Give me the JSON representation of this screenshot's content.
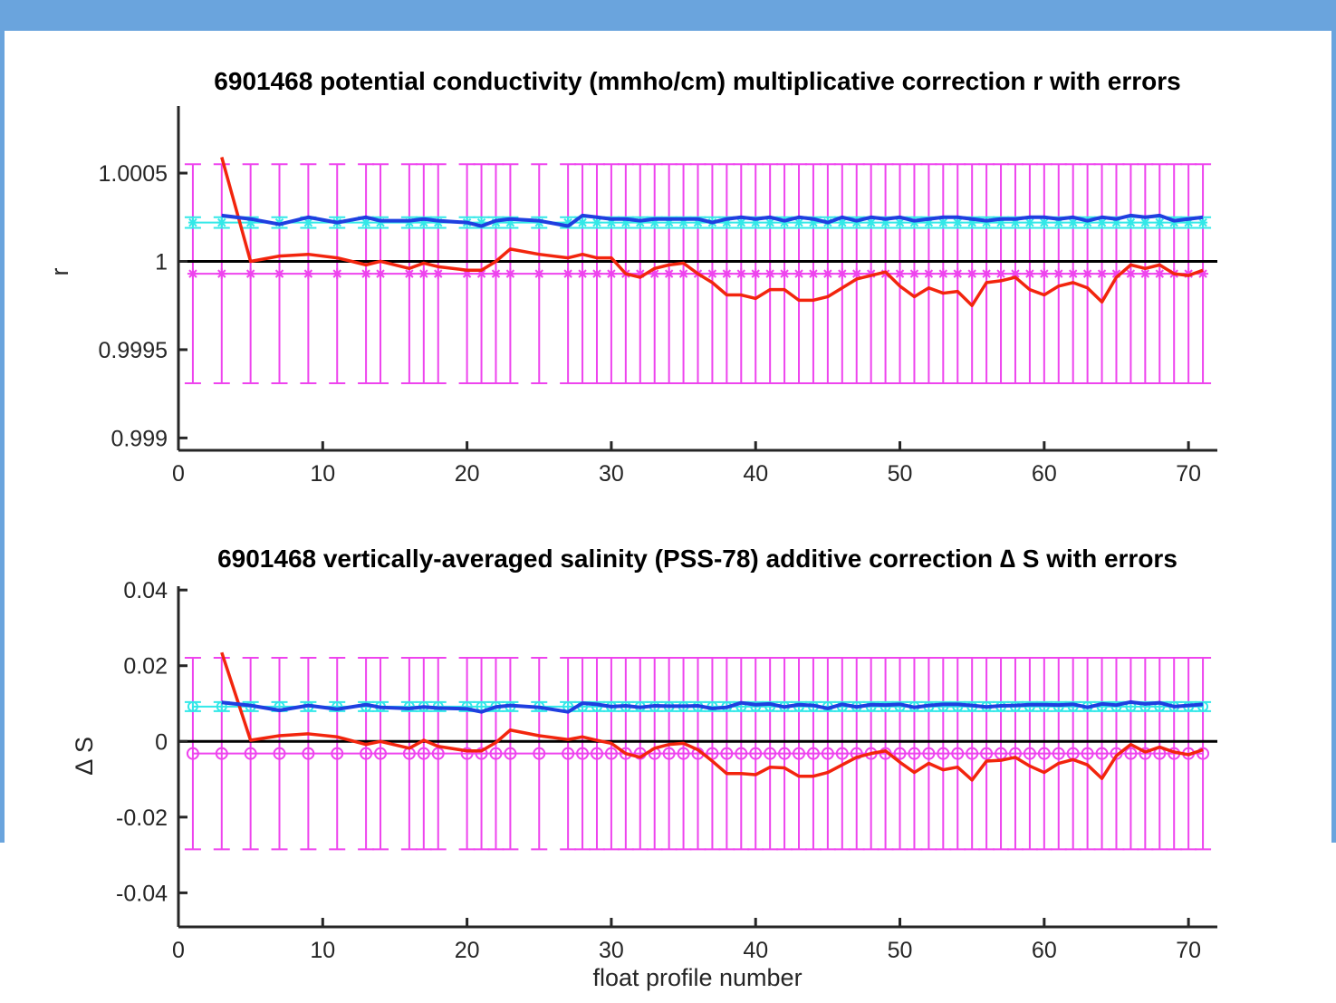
{
  "colors": {
    "frame_band": "#6aa4dd",
    "cyan_series": "#33e8e8",
    "magenta_series": "#ee44ee",
    "blue_series": "#1f3fe0",
    "red_series": "#f2250d",
    "zero_line": "#000000"
  },
  "chart_data": [
    {
      "type": "line",
      "title": "6901468 potential conductivity (mmho/cm) multiplicative correction r with errors",
      "xlabel": "",
      "ylabel": "r",
      "xlim": [
        0,
        72
      ],
      "ylim": [
        0.99893,
        1.00088
      ],
      "xticks": [
        0,
        10,
        20,
        30,
        40,
        50,
        60,
        70
      ],
      "xtick_labels": [
        "0",
        "10",
        "20",
        "30",
        "40",
        "50",
        "60",
        "70"
      ],
      "yticks": [
        0.999,
        0.9995,
        1,
        1.0005
      ],
      "ytick_labels": [
        "0.999",
        "0.9995",
        "1",
        "1.0005"
      ],
      "grid": false,
      "reference_line": 1,
      "x": [
        1,
        3,
        5,
        7,
        9,
        11,
        13,
        14,
        16,
        17,
        18,
        20,
        21,
        22,
        23,
        25,
        27,
        28,
        29,
        30,
        31,
        32,
        33,
        34,
        35,
        36,
        37,
        38,
        39,
        40,
        41,
        42,
        43,
        44,
        45,
        46,
        47,
        48,
        49,
        50,
        51,
        52,
        53,
        54,
        55,
        56,
        57,
        58,
        59,
        60,
        61,
        62,
        63,
        64,
        65,
        66,
        67,
        68,
        69,
        70,
        71
      ],
      "series": [
        {
          "role": "red",
          "x": [
            3,
            5,
            7,
            9,
            11,
            13,
            14,
            16,
            17,
            18,
            20,
            21,
            22,
            23,
            25,
            27,
            28,
            29,
            30,
            31,
            32,
            33,
            34,
            35,
            36,
            37,
            38,
            39,
            40,
            41,
            42,
            43,
            44,
            45,
            46,
            47,
            48,
            49,
            50,
            51,
            52,
            53,
            54,
            55,
            56,
            57,
            58,
            59,
            60,
            61,
            62,
            63,
            64,
            65,
            66,
            67,
            68,
            69,
            70,
            71
          ],
          "values": [
            1.00059,
            1.0,
            1.00003,
            1.00004,
            1.00002,
            0.99998,
            1.0,
            0.99996,
            0.99999,
            0.99997,
            0.99995,
            0.99995,
            1.0,
            1.00007,
            1.00004,
            1.00002,
            1.00004,
            1.00002,
            1.00002,
            0.99993,
            0.99991,
            0.99996,
            0.99998,
            0.99999,
            0.99993,
            0.99988,
            0.99981,
            0.99981,
            0.99979,
            0.99984,
            0.99984,
            0.99978,
            0.99978,
            0.9998,
            0.99985,
            0.9999,
            0.99992,
            0.99994,
            0.99986,
            0.9998,
            0.99985,
            0.99982,
            0.99983,
            0.99975,
            0.99988,
            0.99989,
            0.99991,
            0.99984,
            0.99981,
            0.99986,
            0.99988,
            0.99985,
            0.99977,
            0.99991,
            0.99998,
            0.99996,
            0.99998,
            0.99993,
            0.99992,
            0.99995
          ]
        },
        {
          "role": "blue",
          "x": [
            3,
            5,
            7,
            9,
            11,
            13,
            14,
            16,
            17,
            18,
            20,
            21,
            22,
            23,
            25,
            27,
            28,
            29,
            30,
            31,
            32,
            33,
            34,
            35,
            36,
            37,
            38,
            39,
            40,
            41,
            42,
            43,
            44,
            45,
            46,
            47,
            48,
            49,
            50,
            51,
            52,
            53,
            54,
            55,
            56,
            57,
            58,
            59,
            60,
            61,
            62,
            63,
            64,
            65,
            66,
            67,
            68,
            69,
            70,
            71
          ],
          "values": [
            1.00026,
            1.00024,
            1.00021,
            1.00025,
            1.00022,
            1.00025,
            1.00023,
            1.00023,
            1.00024,
            1.00023,
            1.00022,
            1.0002,
            1.00023,
            1.00024,
            1.00023,
            1.0002,
            1.00026,
            1.00025,
            1.00024,
            1.00024,
            1.00023,
            1.00024,
            1.00024,
            1.00024,
            1.00024,
            1.00022,
            1.00024,
            1.00025,
            1.00024,
            1.00025,
            1.00023,
            1.00025,
            1.00024,
            1.00022,
            1.00025,
            1.00023,
            1.00025,
            1.00024,
            1.00025,
            1.00023,
            1.00024,
            1.00025,
            1.00025,
            1.00024,
            1.00023,
            1.00024,
            1.00024,
            1.00025,
            1.00025,
            1.00024,
            1.00025,
            1.00023,
            1.00025,
            1.00024,
            1.00026,
            1.00025,
            1.00026,
            1.00023,
            1.00024,
            1.00025
          ]
        },
        {
          "role": "cyan",
          "x": [
            1,
            3,
            5,
            7,
            9,
            11,
            13,
            14,
            16,
            17,
            18,
            20,
            21,
            22,
            23,
            25,
            27,
            28,
            29,
            30,
            31,
            32,
            33,
            34,
            35,
            36,
            37,
            38,
            39,
            40,
            41,
            42,
            43,
            44,
            45,
            46,
            47,
            48,
            49,
            50,
            51,
            52,
            53,
            54,
            55,
            56,
            57,
            58,
            59,
            60,
            61,
            62,
            63,
            64,
            65,
            66,
            67,
            68,
            69,
            70,
            71
          ],
          "value": 1.00022,
          "error": 3e-05
        },
        {
          "role": "magenta",
          "x": [
            1,
            3,
            5,
            7,
            9,
            11,
            13,
            14,
            16,
            17,
            18,
            20,
            21,
            22,
            23,
            25,
            27,
            28,
            29,
            30,
            31,
            32,
            33,
            34,
            35,
            36,
            37,
            38,
            39,
            40,
            41,
            42,
            43,
            44,
            45,
            46,
            47,
            48,
            49,
            50,
            51,
            52,
            53,
            54,
            55,
            56,
            57,
            58,
            59,
            60,
            61,
            62,
            63,
            64,
            65,
            66,
            67,
            68,
            69,
            70,
            71
          ],
          "value": 0.99993,
          "error": 0.00062
        }
      ]
    },
    {
      "type": "line",
      "title": "6901468 vertically-averaged salinity (PSS-78) additive correction ∆ S with errors",
      "xlabel": "float profile number",
      "ylabel": "∆ S",
      "xlim": [
        0,
        72
      ],
      "ylim": [
        -0.049,
        0.041
      ],
      "xticks": [
        0,
        10,
        20,
        30,
        40,
        50,
        60,
        70
      ],
      "xtick_labels": [
        "0",
        "10",
        "20",
        "30",
        "40",
        "50",
        "60",
        "70"
      ],
      "yticks": [
        -0.04,
        -0.02,
        0,
        0.02,
        0.04
      ],
      "ytick_labels": [
        "-0.04",
        "-0.02",
        "0",
        "0.02",
        "0.04"
      ],
      "grid": false,
      "reference_line": 0,
      "series": [
        {
          "role": "red",
          "x": [
            3,
            5,
            7,
            9,
            11,
            13,
            14,
            16,
            17,
            18,
            20,
            21,
            22,
            23,
            25,
            27,
            28,
            29,
            30,
            31,
            32,
            33,
            34,
            35,
            36,
            37,
            38,
            39,
            40,
            41,
            42,
            43,
            44,
            45,
            46,
            47,
            48,
            49,
            50,
            51,
            52,
            53,
            54,
            55,
            56,
            57,
            58,
            59,
            60,
            61,
            62,
            63,
            64,
            65,
            66,
            67,
            68,
            69,
            70,
            71
          ],
          "values": [
            0.0235,
            0.0003,
            0.0015,
            0.002,
            0.0012,
            -0.0008,
            0,
            -0.0018,
            0.0003,
            -0.0013,
            -0.0025,
            -0.0025,
            -0.0003,
            0.003,
            0.0015,
            0.0005,
            0.0012,
            0.0003,
            -0.0005,
            -0.0032,
            -0.0042,
            -0.0018,
            -0.0008,
            -0.0005,
            -0.0022,
            -0.0052,
            -0.0085,
            -0.0085,
            -0.0088,
            -0.0068,
            -0.007,
            -0.0092,
            -0.0092,
            -0.0082,
            -0.0062,
            -0.0042,
            -0.0032,
            -0.0025,
            -0.0055,
            -0.0082,
            -0.0058,
            -0.0075,
            -0.0068,
            -0.0102,
            -0.0052,
            -0.005,
            -0.0042,
            -0.0065,
            -0.0082,
            -0.0058,
            -0.0048,
            -0.0062,
            -0.0098,
            -0.0038,
            -0.0008,
            -0.0028,
            -0.0015,
            -0.0028,
            -0.0035,
            -0.0022
          ]
        },
        {
          "role": "blue",
          "x": [
            3,
            5,
            7,
            9,
            11,
            13,
            14,
            16,
            17,
            18,
            20,
            21,
            22,
            23,
            25,
            27,
            28,
            29,
            30,
            31,
            32,
            33,
            34,
            35,
            36,
            37,
            38,
            39,
            40,
            41,
            42,
            43,
            44,
            45,
            46,
            47,
            48,
            49,
            50,
            51,
            52,
            53,
            54,
            55,
            56,
            57,
            58,
            59,
            60,
            61,
            62,
            63,
            64,
            65,
            66,
            67,
            68,
            69,
            70,
            71
          ],
          "values": [
            0.0103,
            0.0095,
            0.0082,
            0.0095,
            0.0085,
            0.0097,
            0.009,
            0.0087,
            0.0091,
            0.0088,
            0.0086,
            0.0078,
            0.0091,
            0.0095,
            0.009,
            0.0078,
            0.0101,
            0.0098,
            0.0092,
            0.0094,
            0.009,
            0.0094,
            0.0093,
            0.0093,
            0.0094,
            0.0087,
            0.009,
            0.0102,
            0.0097,
            0.0099,
            0.0091,
            0.0097,
            0.0095,
            0.0087,
            0.0098,
            0.0091,
            0.0097,
            0.0096,
            0.0098,
            0.009,
            0.0095,
            0.0098,
            0.0098,
            0.0095,
            0.0091,
            0.0094,
            0.0095,
            0.0097,
            0.0097,
            0.0096,
            0.0098,
            0.009,
            0.0099,
            0.0096,
            0.0104,
            0.0099,
            0.0102,
            0.0092,
            0.0095,
            0.0098
          ]
        },
        {
          "role": "cyan",
          "value": 0.0092,
          "error": 0.0012
        },
        {
          "role": "magenta",
          "value": -0.0032,
          "error": 0.0253
        }
      ]
    }
  ]
}
